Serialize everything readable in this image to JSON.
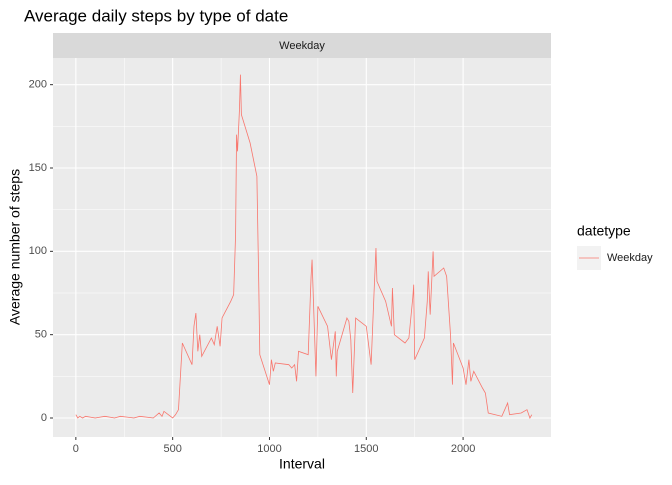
{
  "chart_data": {
    "type": "line",
    "title": "Average daily steps by type of date",
    "facet_label": "Weekday",
    "x_label": "Interval",
    "y_label": "Average number of steps",
    "legend_title": "datetype",
    "legend_position": "right",
    "xlim": [
      -118,
      2454
    ],
    "ylim": [
      -11.4,
      216
    ],
    "xticks": [
      0,
      500,
      1000,
      1500,
      2000
    ],
    "yticks": [
      0,
      50,
      100,
      150,
      200
    ],
    "grid": true,
    "x": [
      0,
      10,
      20,
      35,
      50,
      100,
      150,
      200,
      230,
      300,
      330,
      400,
      430,
      445,
      455,
      500,
      515,
      530,
      545,
      550,
      600,
      610,
      620,
      630,
      640,
      650,
      700,
      715,
      730,
      745,
      755,
      800,
      815,
      825,
      830,
      835,
      845,
      850,
      855,
      900,
      935,
      945,
      950,
      1000,
      1010,
      1020,
      1030,
      1100,
      1115,
      1130,
      1140,
      1150,
      1200,
      1215,
      1220,
      1230,
      1240,
      1250,
      1300,
      1310,
      1320,
      1340,
      1345,
      1350,
      1400,
      1410,
      1420,
      1430,
      1445,
      1500,
      1525,
      1540,
      1550,
      1555,
      1600,
      1630,
      1635,
      1645,
      1700,
      1720,
      1740,
      1745,
      1750,
      1800,
      1815,
      1820,
      1830,
      1845,
      1850,
      1900,
      1915,
      1935,
      1945,
      1950,
      2000,
      2015,
      2030,
      2040,
      2055,
      2100,
      2115,
      2130,
      2200,
      2215,
      2230,
      2240,
      2300,
      2330,
      2345,
      2355
    ],
    "series": [
      {
        "name": "Weekday",
        "color": "#f8766d",
        "values": [
          2,
          0,
          1,
          0,
          1,
          0,
          1,
          0,
          1,
          0,
          1,
          0,
          3,
          1,
          4,
          0,
          2,
          5,
          35,
          45,
          32,
          55,
          63,
          40,
          50,
          37,
          48,
          44,
          55,
          43,
          60,
          70,
          74,
          110,
          170,
          160,
          185,
          206,
          182,
          165,
          145,
          78,
          38,
          20,
          35,
          28,
          33,
          32,
          30,
          32,
          22,
          40,
          38,
          85,
          95,
          60,
          25,
          67,
          55,
          45,
          35,
          52,
          25,
          40,
          60,
          58,
          47,
          15,
          60,
          55,
          32,
          75,
          102,
          82,
          70,
          55,
          78,
          50,
          45,
          48,
          72,
          80,
          35,
          48,
          70,
          88,
          62,
          100,
          85,
          90,
          85,
          50,
          20,
          45,
          30,
          20,
          35,
          22,
          28,
          18,
          15,
          3,
          1,
          5,
          9,
          2,
          3,
          5,
          0,
          2
        ]
      }
    ]
  }
}
